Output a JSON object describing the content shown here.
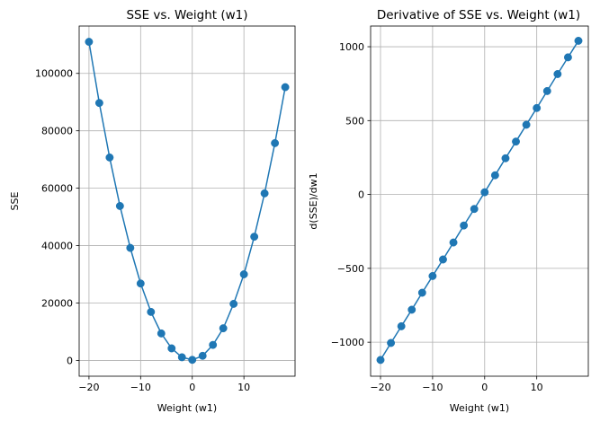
{
  "chart_data": [
    {
      "type": "line",
      "title": "SSE vs. Weight (w1)",
      "xlabel": "Weight (w1)",
      "ylabel": "SSE",
      "xlim": [
        -21.9,
        19.9
      ],
      "ylim": [
        -5500,
        116500
      ],
      "xticks": [
        -20,
        -10,
        0,
        10
      ],
      "xtick_labels": [
        "−20",
        "−10",
        "0",
        "10"
      ],
      "yticks": [
        0,
        20000,
        40000,
        60000,
        80000,
        100000
      ],
      "ytick_labels": [
        "0",
        "20000",
        "40000",
        "60000",
        "80000",
        "100000"
      ],
      "grid": true,
      "marker": "o",
      "color": "#1f77b4",
      "series": [
        {
          "x": [
            -20,
            -18,
            -16,
            -14,
            -12,
            -10,
            -8,
            -6,
            -4,
            -2,
            0,
            2,
            4,
            6,
            8,
            10,
            12,
            14,
            16,
            18
          ],
          "y": [
            111000,
            89700,
            70700,
            53800,
            39200,
            26800,
            16900,
            9400,
            4200,
            1100,
            200,
            1600,
            5400,
            11200,
            19700,
            30000,
            43100,
            58200,
            75700,
            95200
          ]
        }
      ]
    },
    {
      "type": "line",
      "title": "Derivative of SSE vs. Weight (w1)",
      "xlabel": "Weight (w1)",
      "ylabel": "d(SSE)/dw1",
      "xlim": [
        -21.9,
        19.9
      ],
      "ylim": [
        -1230,
        1140
      ],
      "xticks": [
        -20,
        -10,
        0,
        10
      ],
      "xtick_labels": [
        "−20",
        "−10",
        "0",
        "10"
      ],
      "yticks": [
        -1000,
        -500,
        0,
        500,
        1000
      ],
      "ytick_labels": [
        "−1000",
        "−500",
        "0",
        "500",
        "1000"
      ],
      "grid": true,
      "marker": "o",
      "color": "#1f77b4",
      "series": [
        {
          "x": [
            -20,
            -18,
            -16,
            -14,
            -12,
            -10,
            -8,
            -6,
            -4,
            -2,
            0,
            2,
            4,
            6,
            8,
            10,
            12,
            14,
            16,
            18
          ],
          "y": [
            -1120,
            -1005,
            -892,
            -780,
            -665,
            -552,
            -440,
            -325,
            -210,
            -98,
            15,
            130,
            245,
            358,
            472,
            585,
            700,
            815,
            928,
            1040
          ]
        }
      ]
    }
  ]
}
